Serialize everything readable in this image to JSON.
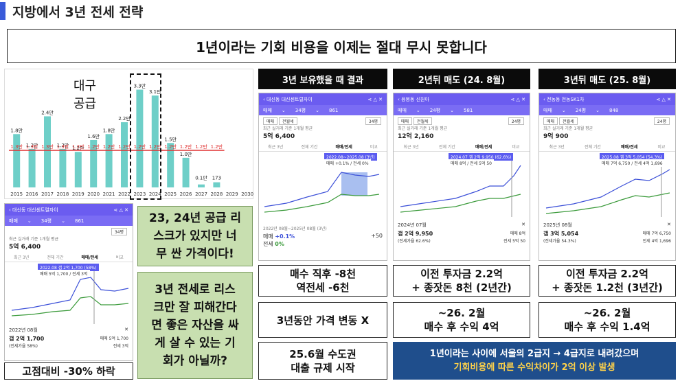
{
  "title": "지방에서 3년 전세 전략",
  "banner": "1년이라는 기회 비용을 이제는 절대 무시 못합니다",
  "supply_chart": {
    "label_line1": "대구",
    "label_line2": "공급",
    "years": [
      "2015",
      "2016",
      "2017",
      "2018",
      "2019",
      "2020",
      "2021",
      "2022",
      "2023",
      "2024",
      "2025",
      "2026",
      "2027",
      "2028",
      "2029",
      "2030"
    ],
    "bar_values": [
      1.8,
      1.3,
      2.4,
      1.3,
      1.2,
      1.6,
      1.8,
      2.2,
      3.3,
      3.1,
      1.5,
      1.0,
      0.1,
      0.173,
      0,
      0
    ],
    "bar_labels": [
      "1.8만",
      "1.3만",
      "2.4만",
      "1.3만",
      "1.2만",
      "1.6만",
      "1.8만",
      "2.2만",
      "3.3만",
      "3.1만",
      "1.5만",
      "1.0만",
      "0.1만",
      "173",
      "",
      ""
    ],
    "avg_labels": [
      "1.3만",
      "1.3만",
      "1.3만",
      "1.3만",
      "1.2만",
      "1.2만",
      "1.2만",
      "1.2만",
      "1.2만",
      "1.2만",
      "1.2만",
      "1.2만",
      "1.2만",
      "1.2만",
      "",
      ""
    ],
    "avg_value": 1.25,
    "ymax": 3.8
  },
  "phone_left": {
    "title": "대신동 대신센트럴자이",
    "type": "매매",
    "area": "34평",
    "count": "861",
    "area_sel": "34평",
    "price_label": "최근 실거래 기준 1개월 평균",
    "price": "5억 6,400",
    "tabs": [
      "최근 3년",
      "전체 기간",
      "매매/전세",
      "비교"
    ],
    "tip": "2022.08  갭 2억 1,700 (58%)",
    "tip2": "매매 5억 1,700 / 전세 3억",
    "date": "2022년 08월",
    "gap": "갭 2억 1,700",
    "gap_pct": "(전세가율 58%)",
    "side1": "매매 5억 1,700",
    "side2": "전세 3억"
  },
  "caption_left": "고점대비 -30% 하락",
  "green1": [
    "23, 24년 공급 리",
    "스크가 있지만 너",
    "무 싼 가격이다!"
  ],
  "green2": [
    "3년 전세로 리스",
    "크만 잘 피해간다",
    "면 좋은 자산을 싸",
    "게 살 수 있는 기",
    "회가 아닐까?"
  ],
  "col1": {
    "header": "3년 보유했을 때 결과",
    "phone_title": "대신동 대신센트럴자이",
    "area": "34평",
    "count": "861",
    "price": "5억 6,400",
    "tip": "2022.08~2025.08 (3년)",
    "tip2": "매매 +0.1% / 전세 0%",
    "foot_date": "2022년 08월~2025년 08월 (3년)",
    "foot1": "+0.1%",
    "foot2": "0%",
    "foot3": "+50",
    "box1": [
      "매수 직후 -8천",
      "역전세 -6천"
    ],
    "box2": "3년동안 가격 변동 X",
    "box3": [
      "25.6월 수도권",
      "대출 규제 시작"
    ]
  },
  "col2": {
    "header": "2년뒤 매도 (24. 8월)",
    "phone_title": "용봉동 신원아",
    "area": "24평",
    "count": "581",
    "price": "12억 2,160",
    "tip": "2024.07  갭 2억 9,950 (62.6%)",
    "tip2": "매매 8억 / 전세 5억 50",
    "date": "2024년 07월",
    "gap": "갭 2억 9,950",
    "gap_pct": "(전세가율 62.6%)",
    "side1": "매매 8억",
    "side2": "전세 5억 50",
    "box1": [
      "이전 투자금 2.2억",
      "+ 종잣돈 8천 (2년간)"
    ],
    "box2": [
      "~26. 2월",
      "매수 후 수익 4억"
    ]
  },
  "col3": {
    "header": "3년뒤 매도 (25. 8월)",
    "phone_title": "전농동 전농SK1차",
    "area": "24평",
    "count": "848",
    "price": "9억 900",
    "tip": "2025.08  갭 3억 5,054 (54.3%)",
    "tip2": "매매 7억 6,750 / 전세 4억 1,696",
    "date": "2025년 08월",
    "gap": "갭 3억 5,054",
    "gap_pct": "(전세가율 54.3%)",
    "side1": "매매 7억 6,750",
    "side2": "전세 4억 1,696",
    "box1": [
      "이전 투자금 2.2억",
      "+ 종잣돈 1.2천 (3년간)"
    ],
    "box2": [
      "~26. 2월",
      "매수 후 수익 1.4억"
    ]
  },
  "blue_box": {
    "line1": "1년이라는 사이에 서울의 2급지 → 4급지로 내려갔으며",
    "line2": "기회비용에 따른 수익차이가 2억 이상 발생",
    "line2_color": "#ffd24a"
  },
  "phone_ui": {
    "tab_sale": "매매",
    "tab_jeonse": "전월세",
    "tabs": [
      "최근 3년",
      "전체 기간",
      "매매/전세",
      "비교"
    ]
  }
}
